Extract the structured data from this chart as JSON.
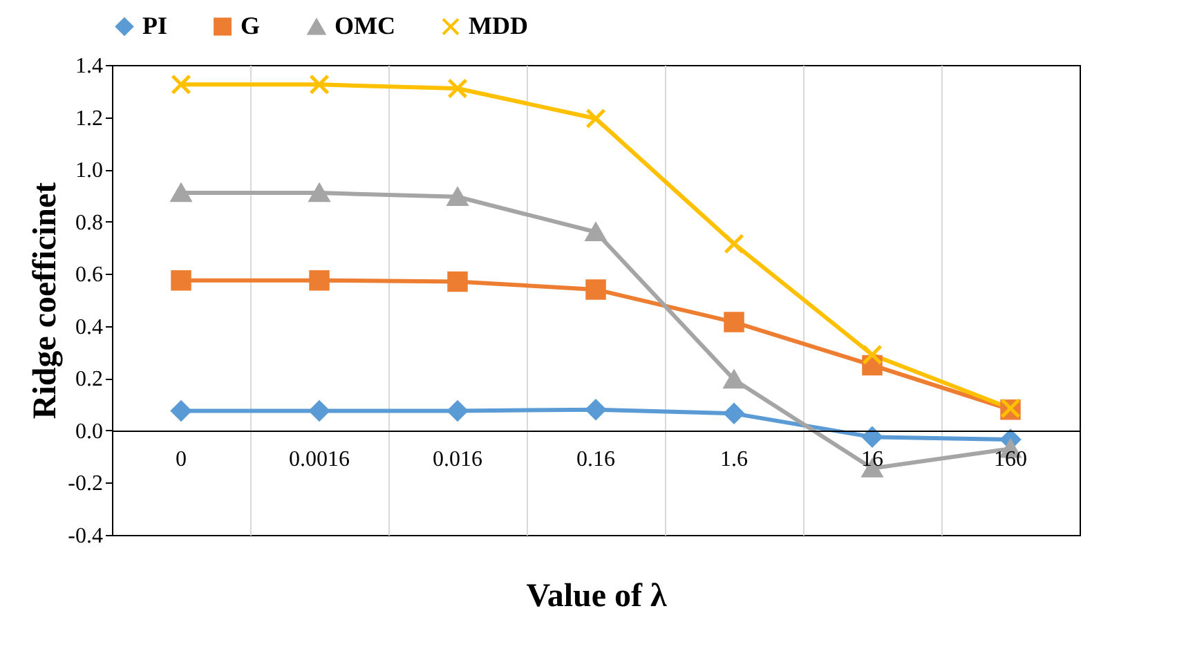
{
  "chart_data": {
    "type": "line",
    "xlabel": "Value of λ",
    "ylabel": "Ridge coefficinet",
    "categories": [
      "0",
      "0.0016",
      "0.016",
      "0.16",
      "1.6",
      "16",
      "160"
    ],
    "series": [
      {
        "name": "PI",
        "color": "#5b9bd5",
        "marker": "diamond",
        "values": [
          0.075,
          0.075,
          0.075,
          0.08,
          0.065,
          -0.025,
          -0.035
        ]
      },
      {
        "name": "G",
        "color": "#ed7d31",
        "marker": "square",
        "values": [
          0.575,
          0.575,
          0.57,
          0.54,
          0.415,
          0.25,
          0.08
        ]
      },
      {
        "name": "OMC",
        "color": "#a5a5a5",
        "marker": "triangle",
        "values": [
          0.91,
          0.91,
          0.895,
          0.76,
          0.195,
          -0.145,
          -0.07
        ]
      },
      {
        "name": "MDD",
        "color": "#ffc000",
        "marker": "cross",
        "values": [
          1.325,
          1.325,
          1.31,
          1.195,
          0.715,
          0.29,
          0.085
        ]
      }
    ],
    "ylim": [
      -0.4,
      1.4
    ],
    "yticks": [
      {
        "value": -0.4,
        "label": "-0.4"
      },
      {
        "value": -0.2,
        "label": "-0.2"
      },
      {
        "value": 0,
        "label": "0.0"
      },
      {
        "value": 0.2,
        "label": "0.2"
      },
      {
        "value": 0.4,
        "label": "0.4"
      },
      {
        "value": 0.6,
        "label": "0.6"
      },
      {
        "value": 0.8,
        "label": "0.8"
      },
      {
        "value": 1,
        "label": "1.0"
      },
      {
        "value": 1.2,
        "label": "1.2"
      },
      {
        "value": 1.4,
        "label": "1.4"
      }
    ],
    "grid": "x",
    "legend": "top",
    "line_style": "solid"
  }
}
